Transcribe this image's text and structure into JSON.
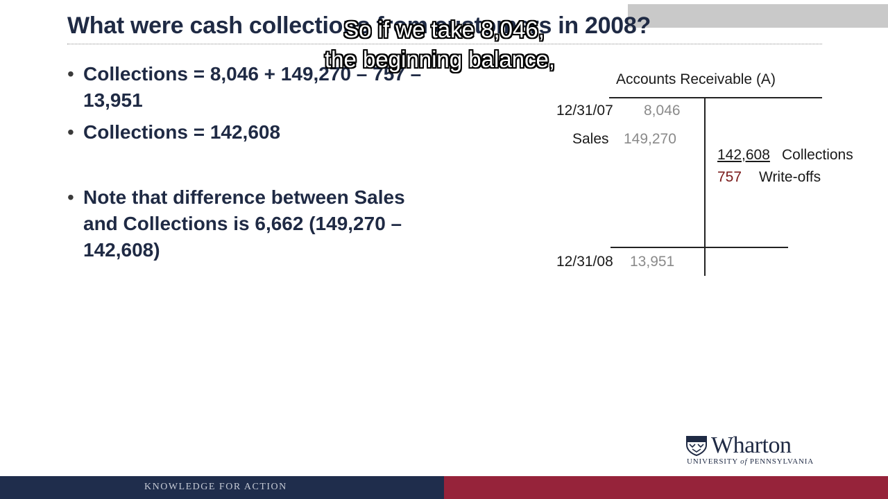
{
  "slide": {
    "title": "What were cash collections from customers in 2008?"
  },
  "captions": {
    "line1": "So if we take 8,046,",
    "line2": "the beginning balance,"
  },
  "bullets": [
    {
      "marker": "•",
      "text": "Collections = 8,046 + 149,270 – 757 – 13,951"
    },
    {
      "marker": "•",
      "text": "Collections = 142,608"
    },
    {
      "marker": "•",
      "text": "Note that difference between Sales and Collections is 6,662 (149,270 – 142,608)"
    }
  ],
  "t_account": {
    "title": "Accounts Receivable (A)",
    "debits": [
      {
        "label": "12/31/07",
        "amount": "8,046"
      },
      {
        "label": "Sales",
        "amount": "149,270"
      }
    ],
    "credits": [
      {
        "amount": "142,608",
        "label": "Collections"
      },
      {
        "amount": "757",
        "label": "Write-offs"
      }
    ],
    "ending": {
      "label": "12/31/08",
      "amount": "13,951"
    }
  },
  "logo": {
    "name": "Wharton",
    "subtitle_part1": "UNIVERSITY",
    "subtitle_of": "of",
    "subtitle_part2": "PENNSYLVANIA"
  },
  "footer": {
    "tagline": "KNOWLEDGE FOR ACTION"
  },
  "colors": {
    "navy": "#1f2d4c",
    "crimson": "#96233a",
    "title_text": "#1f2a44",
    "writeoff_red": "#7a1a1a"
  }
}
